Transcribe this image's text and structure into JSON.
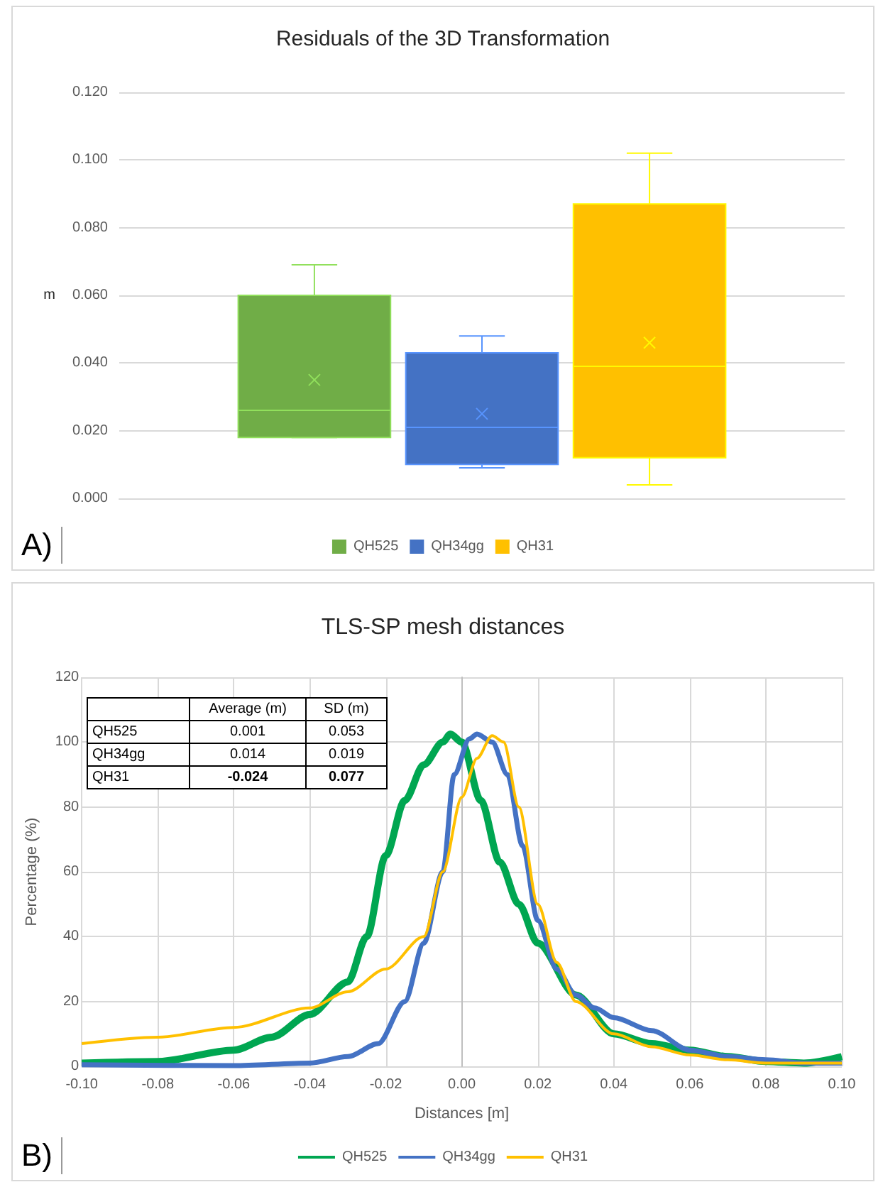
{
  "chart_data": [
    {
      "type": "box",
      "title": "Residuals of the 3D Transformation",
      "ylabel": "m",
      "categories": [
        null
      ],
      "ylim": [
        0,
        0.12
      ],
      "yticks": [
        {
          "value": 0,
          "label": "0.000"
        },
        {
          "value": 0.02,
          "label": "0.020"
        },
        {
          "value": 0.04,
          "label": "0.040"
        },
        {
          "value": 0.06,
          "label": "0.060"
        },
        {
          "value": 0.08,
          "label": "0.080"
        },
        {
          "value": 0.1,
          "label": "0.100"
        },
        {
          "value": 0.12,
          "label": "0.120"
        }
      ],
      "grid": "y",
      "legend": "bottom",
      "annotations": [
        "A)"
      ],
      "series": [
        {
          "name": "QH525",
          "color": "#70ad47",
          "boxes": [
            {
              "low": 0.018,
              "q1": 0.018,
              "median": 0.026,
              "q3": 0.06,
              "high": 0.069,
              "mean": 0.035
            }
          ]
        },
        {
          "name": "QH34gg",
          "color": "#4472c4",
          "boxes": [
            {
              "low": 0.009,
              "q1": 0.01,
              "median": 0.021,
              "q3": 0.043,
              "high": 0.048,
              "mean": 0.025
            }
          ]
        },
        {
          "name": "QH31",
          "color": "#ffc000",
          "boxes": [
            {
              "low": 0.004,
              "q1": 0.012,
              "median": 0.039,
              "q3": 0.087,
              "high": 0.102,
              "mean": 0.046
            }
          ]
        }
      ]
    },
    {
      "type": "line",
      "title": "TLS-SP mesh distances",
      "xlabel": "Distances [m]",
      "ylabel": "Percentage (%)",
      "xlim": [
        -0.1,
        0.1
      ],
      "xticks": [
        {
          "value": -0.1,
          "label": "-0.10"
        },
        {
          "value": -0.08,
          "label": "-0.08"
        },
        {
          "value": -0.06,
          "label": "-0.06"
        },
        {
          "value": -0.04,
          "label": "-0.04"
        },
        {
          "value": -0.02,
          "label": "-0.02"
        },
        {
          "value": 0,
          "label": "0.00"
        },
        {
          "value": 0.02,
          "label": "0.02"
        },
        {
          "value": 0.04,
          "label": "0.04"
        },
        {
          "value": 0.06,
          "label": "0.06"
        },
        {
          "value": 0.08,
          "label": "0.08"
        },
        {
          "value": 0.1,
          "label": "0.10"
        }
      ],
      "ylim": [
        0,
        120
      ],
      "yticks": [
        0,
        20,
        40,
        60,
        80,
        100,
        120
      ],
      "grid": true,
      "legend": "bottom",
      "marker": "none",
      "line_style": "solid",
      "annotations": [
        "B)",
        "Average (m)",
        "SD (m)",
        "QH525",
        "0.001",
        "0.053",
        "QH34gg",
        "0.014",
        "0.019",
        "QH31",
        "-0.024",
        "0.077"
      ],
      "series": [
        {
          "name": "QH525",
          "color": "#00a651",
          "x": [
            -0.1,
            -0.08,
            -0.06,
            -0.05,
            -0.04,
            -0.03,
            -0.025,
            -0.02,
            -0.015,
            -0.01,
            -0.005,
            -0.003,
            0,
            0.005,
            0.01,
            0.015,
            0.02,
            0.03,
            0.04,
            0.05,
            0.06,
            0.07,
            0.08,
            0.09,
            0.1
          ],
          "values": [
            1,
            1.5,
            5,
            9,
            16,
            26,
            40,
            65,
            82,
            93,
            100,
            102.5,
            100,
            82,
            63,
            50,
            38,
            22,
            10,
            7,
            5,
            3,
            1.5,
            1,
            3
          ]
        },
        {
          "name": "QH34gg",
          "color": "#4472c4",
          "x": [
            -0.1,
            -0.06,
            -0.04,
            -0.03,
            -0.022,
            -0.015,
            -0.01,
            -0.005,
            -0.002,
            0.002,
            0.004,
            0.008,
            0.012,
            0.016,
            0.02,
            0.025,
            0.03,
            0.035,
            0.04,
            0.05,
            0.06,
            0.07,
            0.08,
            0.09,
            0.1
          ],
          "values": [
            0.5,
            0.2,
            1,
            3,
            7,
            20,
            38,
            60,
            90,
            101,
            102.5,
            100,
            90,
            68,
            45,
            30,
            22,
            18,
            15,
            11,
            5,
            3,
            2,
            1,
            1
          ]
        },
        {
          "name": "QH31",
          "color": "#ffc000",
          "x": [
            -0.1,
            -0.08,
            -0.06,
            -0.04,
            -0.03,
            -0.02,
            -0.01,
            -0.005,
            0,
            0.004,
            0.008,
            0.011,
            0.015,
            0.02,
            0.025,
            0.03,
            0.04,
            0.05,
            0.06,
            0.07,
            0.08,
            0.09,
            0.1
          ],
          "values": [
            7,
            9,
            12,
            18,
            23,
            30,
            40,
            60,
            83,
            95,
            102,
            100,
            80,
            50,
            32,
            20,
            10,
            6,
            3.5,
            2,
            1,
            1,
            1
          ]
        }
      ]
    }
  ]
}
